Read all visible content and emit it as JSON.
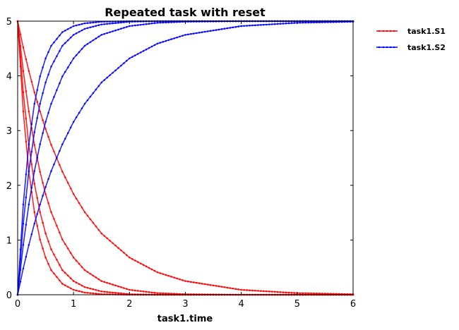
{
  "chart_data": {
    "type": "line",
    "title": "Repeated task with reset",
    "xlabel": "task1.time",
    "ylabel": "",
    "xlim": [
      0,
      6
    ],
    "ylim": [
      0,
      5
    ],
    "xticks": [
      0,
      1,
      2,
      3,
      4,
      5,
      6
    ],
    "yticks": [
      0,
      1,
      2,
      3,
      4,
      5
    ],
    "grid": false,
    "legend_position": "outside-top-right",
    "series": [
      {
        "name": "task1.S1",
        "color": "#ff0000",
        "marker": "dot",
        "runs": [
          {
            "x": [
              0,
              0.1,
              0.2,
              0.3,
              0.4,
              0.5,
              0.6,
              0.8,
              1.0,
              1.2,
              1.5,
              2.0,
              2.5,
              3.0,
              4.0,
              5.0,
              6.0
            ],
            "y": [
              5.0,
              4.52,
              4.09,
              3.7,
              3.35,
              3.03,
              2.74,
              2.25,
              1.84,
              1.51,
              1.12,
              0.68,
              0.41,
              0.25,
              0.09,
              0.03,
              0.01
            ]
          },
          {
            "x": [
              0,
              0.1,
              0.2,
              0.3,
              0.4,
              0.5,
              0.6,
              0.8,
              1.0,
              1.2,
              1.5,
              2.0,
              2.5,
              3.0,
              4.0,
              5.0,
              6.0
            ],
            "y": [
              5.0,
              4.09,
              3.35,
              2.74,
              2.25,
              1.84,
              1.51,
              1.01,
              0.68,
              0.45,
              0.25,
              0.09,
              0.03,
              0.01,
              0.0,
              0.0,
              0.0
            ]
          },
          {
            "x": [
              0,
              0.1,
              0.2,
              0.3,
              0.4,
              0.5,
              0.6,
              0.8,
              1.0,
              1.2,
              1.5,
              2.0,
              2.5,
              3.0,
              4.0,
              5.0,
              6.0
            ],
            "y": [
              5.0,
              3.7,
              2.74,
              2.03,
              1.51,
              1.12,
              0.83,
              0.45,
              0.25,
              0.14,
              0.06,
              0.01,
              0.0,
              0.0,
              0.0,
              0.0,
              0.0
            ]
          },
          {
            "x": [
              0,
              0.1,
              0.2,
              0.3,
              0.4,
              0.5,
              0.6,
              0.8,
              1.0,
              1.2,
              1.5,
              2.0,
              2.5,
              3.0,
              4.0,
              5.0,
              6.0
            ],
            "y": [
              5.0,
              3.35,
              2.25,
              1.51,
              1.01,
              0.68,
              0.45,
              0.2,
              0.09,
              0.04,
              0.01,
              0.0,
              0.0,
              0.0,
              0.0,
              0.0,
              0.0
            ]
          }
        ]
      },
      {
        "name": "task1.S2",
        "color": "#0000ff",
        "marker": "dot",
        "runs": [
          {
            "x": [
              0,
              0.1,
              0.2,
              0.3,
              0.4,
              0.5,
              0.6,
              0.8,
              1.0,
              1.2,
              1.5,
              2.0,
              2.5,
              3.0,
              4.0,
              5.0,
              6.0
            ],
            "y": [
              0.0,
              0.48,
              0.91,
              1.3,
              1.65,
              1.97,
              2.26,
              2.75,
              3.16,
              3.49,
              3.88,
              4.32,
              4.59,
              4.75,
              4.91,
              4.97,
              4.99
            ]
          },
          {
            "x": [
              0,
              0.1,
              0.2,
              0.3,
              0.4,
              0.5,
              0.6,
              0.8,
              1.0,
              1.2,
              1.5,
              2.0,
              2.5,
              3.0,
              4.0,
              5.0,
              6.0
            ],
            "y": [
              0.0,
              0.91,
              1.65,
              2.26,
              2.75,
              3.16,
              3.49,
              3.99,
              4.32,
              4.55,
              4.75,
              4.91,
              4.97,
              4.99,
              5.0,
              5.0,
              5.0
            ]
          },
          {
            "x": [
              0,
              0.1,
              0.2,
              0.3,
              0.4,
              0.5,
              0.6,
              0.8,
              1.0,
              1.2,
              1.5,
              2.0,
              2.5,
              3.0,
              4.0,
              5.0,
              6.0
            ],
            "y": [
              0.0,
              1.3,
              2.26,
              2.97,
              3.49,
              3.88,
              4.17,
              4.55,
              4.75,
              4.86,
              4.94,
              4.99,
              5.0,
              5.0,
              5.0,
              5.0,
              5.0
            ]
          },
          {
            "x": [
              0,
              0.1,
              0.2,
              0.3,
              0.4,
              0.5,
              0.6,
              0.8,
              1.0,
              1.2,
              1.5,
              2.0,
              2.5,
              3.0,
              4.0,
              5.0,
              6.0
            ],
            "y": [
              0.0,
              1.65,
              2.75,
              3.49,
              3.99,
              4.32,
              4.55,
              4.8,
              4.91,
              4.96,
              4.99,
              5.0,
              5.0,
              5.0,
              5.0,
              5.0,
              5.0
            ]
          }
        ]
      }
    ]
  }
}
